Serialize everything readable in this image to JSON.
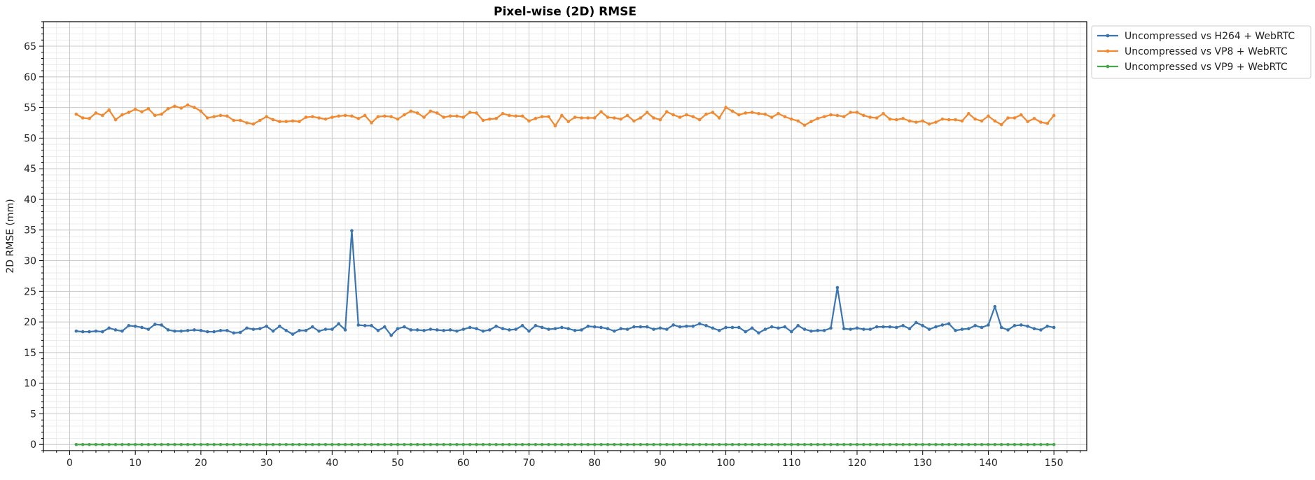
{
  "chart_data": {
    "type": "line",
    "title": "Pixel-wise (2D) RMSE",
    "xlabel": "",
    "ylabel": "2D RMSE (mm)",
    "xlim": [
      -4,
      155
    ],
    "ylim": [
      -1,
      69
    ],
    "x_ticks": [
      0,
      10,
      20,
      30,
      40,
      50,
      60,
      70,
      80,
      90,
      100,
      110,
      120,
      130,
      140,
      150
    ],
    "y_ticks": [
      0,
      5,
      10,
      15,
      20,
      25,
      30,
      35,
      40,
      45,
      50,
      55,
      60,
      65
    ],
    "grid": true,
    "minor_grid": true,
    "legend_position": "outside top-right",
    "x": [
      1,
      2,
      3,
      4,
      5,
      6,
      7,
      8,
      9,
      10,
      11,
      12,
      13,
      14,
      15,
      16,
      17,
      18,
      19,
      20,
      21,
      22,
      23,
      24,
      25,
      26,
      27,
      28,
      29,
      30,
      31,
      32,
      33,
      34,
      35,
      36,
      37,
      38,
      39,
      40,
      41,
      42,
      43,
      44,
      45,
      46,
      47,
      48,
      49,
      50,
      51,
      52,
      53,
      54,
      55,
      56,
      57,
      58,
      59,
      60,
      61,
      62,
      63,
      64,
      65,
      66,
      67,
      68,
      69,
      70,
      71,
      72,
      73,
      74,
      75,
      76,
      77,
      78,
      79,
      80,
      81,
      82,
      83,
      84,
      85,
      86,
      87,
      88,
      89,
      90,
      91,
      92,
      93,
      94,
      95,
      96,
      97,
      98,
      99,
      100,
      101,
      102,
      103,
      104,
      105,
      106,
      107,
      108,
      109,
      110,
      111,
      112,
      113,
      114,
      115,
      116,
      117,
      118,
      119,
      120,
      121,
      122,
      123,
      124,
      125,
      126,
      127,
      128,
      129,
      130,
      131,
      132,
      133,
      134,
      135,
      136,
      137,
      138,
      139,
      140,
      141,
      142,
      143,
      144,
      145,
      146,
      147,
      148,
      149,
      150
    ],
    "series": [
      {
        "name": "Uncompressed vs H264 + WebRTC",
        "color": "#3a75b0",
        "values": [
          18.5,
          18.4,
          18.4,
          18.5,
          18.4,
          19.0,
          18.7,
          18.5,
          19.4,
          19.3,
          19.1,
          18.8,
          19.6,
          19.5,
          18.7,
          18.5,
          18.5,
          18.6,
          18.7,
          18.6,
          18.4,
          18.4,
          18.6,
          18.6,
          18.2,
          18.3,
          19.0,
          18.8,
          18.9,
          19.3,
          18.5,
          19.3,
          18.6,
          18.0,
          18.6,
          18.6,
          19.2,
          18.5,
          18.8,
          18.8,
          19.7,
          18.7,
          34.9,
          19.5,
          19.4,
          19.4,
          18.6,
          19.2,
          17.8,
          18.9,
          19.2,
          18.7,
          18.7,
          18.6,
          18.8,
          18.7,
          18.6,
          18.7,
          18.5,
          18.8,
          19.1,
          18.9,
          18.5,
          18.7,
          19.3,
          18.9,
          18.7,
          18.8,
          19.4,
          18.5,
          19.4,
          19.1,
          18.8,
          18.9,
          19.1,
          18.9,
          18.6,
          18.7,
          19.3,
          19.2,
          19.1,
          18.9,
          18.5,
          18.9,
          18.8,
          19.2,
          19.2,
          19.2,
          18.8,
          19.0,
          18.8,
          19.5,
          19.2,
          19.3,
          19.3,
          19.7,
          19.4,
          19.0,
          18.6,
          19.1,
          19.1,
          19.1,
          18.4,
          19.0,
          18.2,
          18.8,
          19.2,
          19.0,
          19.2,
          18.4,
          19.4,
          18.8,
          18.5,
          18.6,
          18.6,
          19.0,
          25.6,
          18.9,
          18.8,
          19.0,
          18.8,
          18.8,
          19.2,
          19.2,
          19.2,
          19.1,
          19.4,
          18.9,
          19.9,
          19.4,
          18.8,
          19.2,
          19.5,
          19.7,
          18.6,
          18.8,
          18.9,
          19.4,
          19.1,
          19.5,
          22.5,
          19.1,
          18.7,
          19.4,
          19.5,
          19.3,
          18.9,
          18.7,
          19.3,
          19.1
        ]
      },
      {
        "name": "Uncompressed vs VP8 + WebRTC",
        "color": "#f0892f",
        "values": [
          53.9,
          53.3,
          53.2,
          54.1,
          53.7,
          54.6,
          53.0,
          53.8,
          54.2,
          54.7,
          54.3,
          54.8,
          53.7,
          53.9,
          54.8,
          55.2,
          54.9,
          55.4,
          55.0,
          54.4,
          53.3,
          53.5,
          53.7,
          53.6,
          52.9,
          52.9,
          52.5,
          52.3,
          52.9,
          53.5,
          53.0,
          52.7,
          52.7,
          52.8,
          52.7,
          53.4,
          53.5,
          53.3,
          53.1,
          53.4,
          53.6,
          53.7,
          53.6,
          53.2,
          53.7,
          52.5,
          53.5,
          53.6,
          53.5,
          53.1,
          53.8,
          54.4,
          54.1,
          53.4,
          54.4,
          54.1,
          53.4,
          53.6,
          53.6,
          53.4,
          54.2,
          54.1,
          52.9,
          53.1,
          53.2,
          54.0,
          53.7,
          53.6,
          53.6,
          52.8,
          53.2,
          53.5,
          53.5,
          52.0,
          53.7,
          52.7,
          53.4,
          53.3,
          53.3,
          53.3,
          54.3,
          53.4,
          53.3,
          53.1,
          53.7,
          52.8,
          53.3,
          54.2,
          53.3,
          53.0,
          54.3,
          53.8,
          53.4,
          53.8,
          53.5,
          53.0,
          53.9,
          54.2,
          53.3,
          55.0,
          54.4,
          53.8,
          54.1,
          54.2,
          54.0,
          53.9,
          53.4,
          54.0,
          53.5,
          53.1,
          52.8,
          52.1,
          52.7,
          53.2,
          53.5,
          53.8,
          53.7,
          53.5,
          54.2,
          54.2,
          53.7,
          53.4,
          53.3,
          54.0,
          53.1,
          53.0,
          53.2,
          52.8,
          52.6,
          52.8,
          52.3,
          52.6,
          53.1,
          53.0,
          53.0,
          52.8,
          54.0,
          53.1,
          52.8,
          53.6,
          52.8,
          52.2,
          53.3,
          53.3,
          53.8,
          52.7,
          53.2,
          52.6,
          52.4,
          53.7
        ]
      },
      {
        "name": "Uncompressed vs VP9 + WebRTC",
        "color": "#4aa64a",
        "values": [
          0,
          0,
          0,
          0,
          0,
          0,
          0,
          0,
          0,
          0,
          0,
          0,
          0,
          0,
          0,
          0,
          0,
          0,
          0,
          0,
          0,
          0,
          0,
          0,
          0,
          0,
          0,
          0,
          0,
          0,
          0,
          0,
          0,
          0,
          0,
          0,
          0,
          0,
          0,
          0,
          0,
          0,
          0,
          0,
          0,
          0,
          0,
          0,
          0,
          0,
          0,
          0,
          0,
          0,
          0,
          0,
          0,
          0,
          0,
          0,
          0,
          0,
          0,
          0,
          0,
          0,
          0,
          0,
          0,
          0,
          0,
          0,
          0,
          0,
          0,
          0,
          0,
          0,
          0,
          0,
          0,
          0,
          0,
          0,
          0,
          0,
          0,
          0,
          0,
          0,
          0,
          0,
          0,
          0,
          0,
          0,
          0,
          0,
          0,
          0,
          0,
          0,
          0,
          0,
          0,
          0,
          0,
          0,
          0,
          0,
          0,
          0,
          0,
          0,
          0,
          0,
          0,
          0,
          0,
          0,
          0,
          0,
          0,
          0,
          0,
          0,
          0,
          0,
          0,
          0,
          0,
          0,
          0,
          0,
          0,
          0,
          0,
          0,
          0,
          0,
          0,
          0,
          0,
          0,
          0,
          0,
          0,
          0,
          0,
          0
        ]
      }
    ]
  }
}
